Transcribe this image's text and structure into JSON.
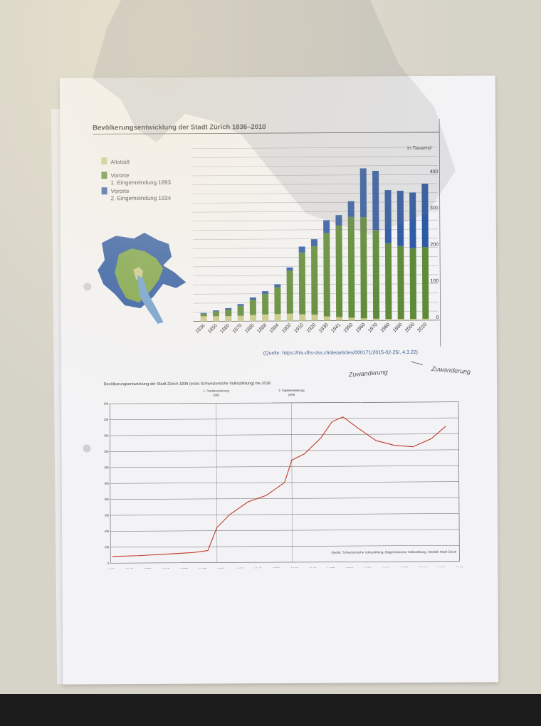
{
  "chart_data": [
    {
      "type": "bar",
      "title": "Bevölkerungsentwicklung der Stadt Zürich 1836–2010",
      "unit_label": "in Tausend",
      "categories": [
        "1836",
        "1850",
        "1860",
        "1870",
        "1880",
        "1888",
        "1894",
        "1900",
        "1910",
        "1920",
        "1930",
        "1941",
        "1950",
        "1960",
        "1970",
        "1980",
        "1990",
        "2000",
        "2010"
      ],
      "series": [
        {
          "name": "Altstadt",
          "color": "#c9c98a",
          "values": [
            14,
            14,
            14,
            15,
            17,
            18,
            19,
            20,
            18,
            17,
            12,
            10,
            8,
            6,
            5,
            4,
            4,
            4,
            4
          ]
        },
        {
          "name": "Vororte\n1. Eingemeindung 1893",
          "color": "#5f8a38",
          "values": [
            7,
            13,
            18,
            27,
            42,
            57,
            74,
            118,
            170,
            188,
            229,
            252,
            277,
            278,
            243,
            208,
            200,
            194,
            197
          ]
        },
        {
          "name": "Vororte\n2. Eingemeindung 1934",
          "color": "#2d5aa5",
          "values": [
            2,
            3,
            4,
            5,
            6,
            7,
            8,
            9,
            16,
            19,
            35,
            28,
            43,
            134,
            163,
            146,
            152,
            153,
            174
          ]
        }
      ],
      "ylim": [
        0,
        450
      ],
      "yticks": [
        "0",
        "100",
        "200",
        "300",
        "400"
      ],
      "source": "(Quelle: https://hls-dhs-dss.ch/de/articles/000171/2015-02-25/, 4.3.22)",
      "handwriting": [
        "Zuwanderung",
        "Zuwanderung"
      ]
    },
    {
      "type": "line",
      "title": "Bevölkerungsentwicklung der Stadt Zürich 1836 (erste Schweizerische Volkszählung) bis 2018",
      "annotations": [
        {
          "label": "1. Stadterweiterung\n1893",
          "x": 1893
        },
        {
          "label": "2. Stadterweiterung\n1934",
          "x": 1934
        }
      ],
      "x": [
        1836,
        1850,
        1860,
        1870,
        1880,
        1888,
        1893,
        1900,
        1910,
        1920,
        1930,
        1934,
        1941,
        1950,
        1956,
        1962,
        1970,
        1980,
        1990,
        2000,
        2010,
        2018
      ],
      "series": [
        {
          "name": "Bevölkerung",
          "color": "#c0392b",
          "values": [
            21000,
            23000,
            26000,
            29000,
            32000,
            38000,
            110000,
            150000,
            190000,
            210000,
            250000,
            320000,
            340000,
            390000,
            440000,
            455000,
            420000,
            380000,
            365000,
            360000,
            385000,
            424000
          ]
        }
      ],
      "ylim": [
        0,
        500000
      ],
      "yticks": [
        "0",
        "50'000",
        "100'000",
        "150'000",
        "200'000",
        "250'000",
        "300'000",
        "350'000",
        "400'000",
        "450'000",
        "500'000"
      ],
      "xlim": [
        1835,
        2025
      ],
      "xticks": [
        "1835",
        "1845",
        "1855",
        "1865",
        "1875",
        "1885",
        "1895",
        "1905",
        "1915",
        "1925",
        "1935",
        "1945",
        "1955",
        "1965",
        "1975",
        "1985",
        "1995",
        "2005",
        "2015",
        "2025"
      ],
      "source": "Quelle: Schweizerische Volkszählung, Eidgenössische Volkszählung, Statistik Stadt Zürich"
    }
  ]
}
